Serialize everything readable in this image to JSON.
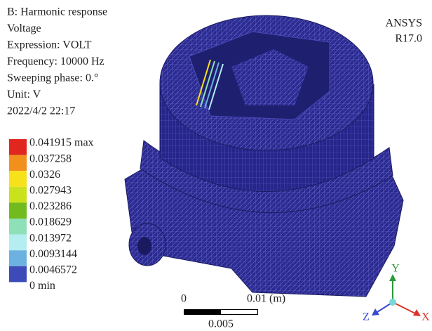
{
  "header": {
    "lines": [
      "B: Harmonic response",
      "Voltage",
      "Expression: VOLT",
      "Frequency: 10000 Hz",
      "Sweeping phase: 0.°",
      "Unit: V",
      "2022/4/2 22:17"
    ]
  },
  "legend": {
    "labels": [
      "0.041915 max",
      "0.037258",
      "0.0326",
      "0.027943",
      "0.023286",
      "0.018629",
      "0.013972",
      "0.0093144",
      "0.0046572",
      "0 min"
    ],
    "colors": [
      "#e0261f",
      "#f2901e",
      "#f7e11a",
      "#c9e21c",
      "#72bb1f",
      "#8ee0b8",
      "#b4eef0",
      "#6cb2e0",
      "#3c4bb8"
    ]
  },
  "brand": {
    "lines": [
      "ANSYS",
      "R17.0"
    ]
  },
  "scale_bar": {
    "start": "0",
    "end": "0.01 (m)",
    "middle": "0.005"
  },
  "triad": {
    "y": "Y",
    "x": "X",
    "z": "Z"
  }
}
